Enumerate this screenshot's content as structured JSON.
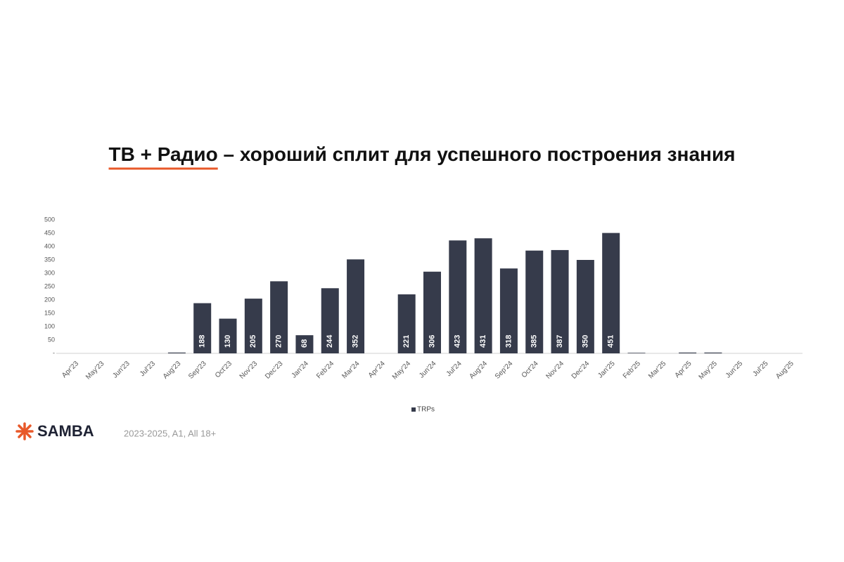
{
  "chart_data": {
    "type": "bar",
    "title": [
      "ТВ + Радио",
      "– хороший сплит для успешного построения знания"
    ],
    "categories": [
      "Apr'23",
      "May'23",
      "Jun'23",
      "Jul'23",
      "Aug'23",
      "Sep'23",
      "Oct'23",
      "Nov'23",
      "Dec'23",
      "Jan'24",
      "Feb'24",
      "Mar'24",
      "Apr'24",
      "May'24",
      "Jun'24",
      "Jul'24",
      "Aug'24",
      "Sep'24",
      "Oct'24",
      "Nov'24",
      "Dec'24",
      "Jan'25",
      "Feb'25",
      "Mar'25",
      "Apr'25",
      "May'25",
      "Jun'25",
      "Jul'25",
      "Aug'25"
    ],
    "series": [
      {
        "name": "TRPs",
        "color": "#363b4b",
        "values": [
          0,
          0,
          0,
          0,
          3,
          188,
          130,
          205,
          270,
          68,
          244,
          352,
          0,
          221,
          306,
          423,
          431,
          318,
          385,
          387,
          350,
          451,
          2,
          0,
          3,
          3,
          0,
          0,
          0
        ],
        "value_labels": [
          null,
          null,
          null,
          null,
          null,
          "188",
          "130",
          "205",
          "270",
          "68",
          "244",
          "352",
          null,
          "221",
          "306",
          "423",
          "431",
          "318",
          "385",
          "387",
          "350",
          "451",
          null,
          null,
          null,
          null,
          null,
          null,
          null
        ]
      }
    ],
    "ylim": [
      0,
      500
    ],
    "yticks": [
      {
        "value": 0,
        "label": "-"
      },
      50,
      100,
      150,
      200,
      250,
      300,
      350,
      400,
      450,
      500
    ],
    "legend": "bottom",
    "grid": false
  },
  "footer": {
    "logo": "SAMBA",
    "note": "2023-2025, A1, All 18+"
  }
}
